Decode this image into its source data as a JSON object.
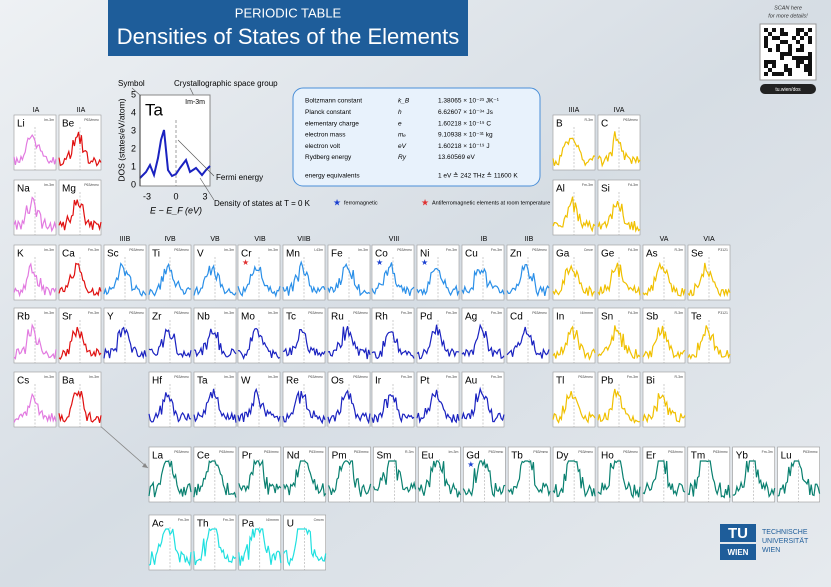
{
  "header": {
    "kicker": "PERIODIC TABLE",
    "title": "Densities of States of the Elements"
  },
  "qr": {
    "note_line1": "SCAN here",
    "note_line2": "for more details!",
    "caption": "tu.wien/dos"
  },
  "example": {
    "symbol": "Ta",
    "space_group": "Im-3m",
    "label_symbol": "Symbol",
    "label_space_group": "Crystallographic space group",
    "label_fermi": "Fermi energy",
    "label_dos": "Density of states at T = 0 K",
    "y_axis": "DOS (states/eV/atom)",
    "x_axis": "E − E_F (eV)",
    "yticks": [
      "5",
      "4",
      "3",
      "2",
      "1",
      "0"
    ],
    "xticks": [
      "-3",
      "0",
      "3"
    ]
  },
  "constants": {
    "rows": [
      [
        "Boltzmann constant",
        "k_B",
        "1.38065 × 10⁻²³ JK⁻¹"
      ],
      [
        "Planck constant",
        "h",
        "6.62607 × 10⁻³⁴ Js"
      ],
      [
        "elementary charge",
        "e",
        "1.60218 × 10⁻¹⁹ C"
      ],
      [
        "electron mass",
        "mₑ",
        "9.10938 × 10⁻³¹ kg"
      ],
      [
        "electron volt",
        "eV",
        "1.60218 × 10⁻¹⁹ J"
      ],
      [
        "Rydberg energy",
        "Ry",
        "13.60569 eV"
      ]
    ],
    "equiv_label": "energy equivalents",
    "equiv_value": "1 eV ≙ 242 THz ≙ 11600 K"
  },
  "legend": {
    "ferro": "ferromagnetic",
    "antiferro": "Antiferromagnetic elements at room temperature",
    "ferro_color": "#1a3fd0",
    "antiferro_color": "#e03030"
  },
  "groups": [
    "IA",
    "IIA",
    "IIIB",
    "IVB",
    "VB",
    "VIB",
    "VIIB",
    "VIII",
    "IB",
    "IIB",
    "IIIA",
    "IVA",
    "VA",
    "VIA"
  ],
  "logo": {
    "mark_top": "TU",
    "mark_bottom": "WIEN",
    "line1": "TECHNISCHE",
    "line2": "UNIVERSITÄT",
    "line3": "WIEN"
  },
  "elements": [
    {
      "symbol": "Li",
      "space_group": "Im-3m",
      "color": "#e27ae0"
    },
    {
      "symbol": "Be",
      "space_group": "P63/mmc",
      "color": "#e01010"
    },
    {
      "symbol": "B",
      "space_group": "R-3m",
      "color": "#f0c000"
    },
    {
      "symbol": "C",
      "space_group": "P63/mmc",
      "color": "#f0c000"
    },
    {
      "symbol": "Na",
      "space_group": "Im-3m",
      "color": "#e27ae0"
    },
    {
      "symbol": "Mg",
      "space_group": "P63/mmc",
      "color": "#e01010"
    },
    {
      "symbol": "Al",
      "space_group": "Fm-3m",
      "color": "#f0c000"
    },
    {
      "symbol": "Si",
      "space_group": "Fd-3m",
      "color": "#f0c000"
    },
    {
      "symbol": "K",
      "space_group": "Im-3m",
      "color": "#e27ae0"
    },
    {
      "symbol": "Ca",
      "space_group": "Fm-3m",
      "color": "#e01010"
    },
    {
      "symbol": "Sc",
      "space_group": "P63/mmc",
      "color": "#2a8fe8"
    },
    {
      "symbol": "Ti",
      "space_group": "P63/mmc",
      "color": "#2a8fe8"
    },
    {
      "symbol": "V",
      "space_group": "Im-3m",
      "color": "#2a8fe8"
    },
    {
      "symbol": "Cr",
      "space_group": "Im-3m",
      "color": "#2a8fe8",
      "star": "antiferro"
    },
    {
      "symbol": "Mn",
      "space_group": "I-43m",
      "color": "#2a8fe8"
    },
    {
      "symbol": "Fe",
      "space_group": "Im-3m",
      "color": "#2a8fe8"
    },
    {
      "symbol": "Co",
      "space_group": "P63/mmc",
      "color": "#2a8fe8",
      "star": "ferro"
    },
    {
      "symbol": "Ni",
      "space_group": "Fm-3m",
      "color": "#2a8fe8",
      "star": "ferro"
    },
    {
      "symbol": "Cu",
      "space_group": "Fm-3m",
      "color": "#2a8fe8"
    },
    {
      "symbol": "Zn",
      "space_group": "P63/mmc",
      "color": "#2a8fe8"
    },
    {
      "symbol": "Ga",
      "space_group": "Cmce",
      "color": "#f0c000"
    },
    {
      "symbol": "Ge",
      "space_group": "Fd-3m",
      "color": "#f0c000"
    },
    {
      "symbol": "As",
      "space_group": "R-3m",
      "color": "#f0c000"
    },
    {
      "symbol": "Se",
      "space_group": "P3121",
      "color": "#f0c000"
    },
    {
      "symbol": "Rb",
      "space_group": "Im-3m",
      "color": "#e27ae0"
    },
    {
      "symbol": "Sr",
      "space_group": "Fm-3m",
      "color": "#e01010"
    },
    {
      "symbol": "Y",
      "space_group": "P63/mmc",
      "color": "#1a22c0"
    },
    {
      "symbol": "Zr",
      "space_group": "P63/mmc",
      "color": "#1a22c0"
    },
    {
      "symbol": "Nb",
      "space_group": "Im-3m",
      "color": "#1a22c0"
    },
    {
      "symbol": "Mo",
      "space_group": "Im-3m",
      "color": "#1a22c0"
    },
    {
      "symbol": "Tc",
      "space_group": "P63/mmc",
      "color": "#1a22c0"
    },
    {
      "symbol": "Ru",
      "space_group": "P63/mmc",
      "color": "#1a22c0"
    },
    {
      "symbol": "Rh",
      "space_group": "Fm-3m",
      "color": "#1a22c0"
    },
    {
      "symbol": "Pd",
      "space_group": "Fm-3m",
      "color": "#1a22c0"
    },
    {
      "symbol": "Ag",
      "space_group": "Fm-3m",
      "color": "#1a22c0"
    },
    {
      "symbol": "Cd",
      "space_group": "P63/mmc",
      "color": "#1a22c0"
    },
    {
      "symbol": "In",
      "space_group": "I4/mmm",
      "color": "#f0c000"
    },
    {
      "symbol": "Sn",
      "space_group": "Fd-3m",
      "color": "#f0c000"
    },
    {
      "symbol": "Sb",
      "space_group": "R-3m",
      "color": "#f0c000"
    },
    {
      "symbol": "Te",
      "space_group": "P3121",
      "color": "#f0c000"
    },
    {
      "symbol": "Cs",
      "space_group": "Im-3m",
      "color": "#e27ae0"
    },
    {
      "symbol": "Ba",
      "space_group": "Im-3m",
      "color": "#e01010"
    },
    {
      "symbol": "Hf",
      "space_group": "P63/mmc",
      "color": "#1a22c0"
    },
    {
      "symbol": "Ta",
      "space_group": "Im-3m",
      "color": "#1a22c0"
    },
    {
      "symbol": "W",
      "space_group": "Im-3m",
      "color": "#1a22c0"
    },
    {
      "symbol": "Re",
      "space_group": "P63/mmc",
      "color": "#1a22c0"
    },
    {
      "symbol": "Os",
      "space_group": "P63/mmc",
      "color": "#1a22c0"
    },
    {
      "symbol": "Ir",
      "space_group": "Fm-3m",
      "color": "#1a22c0"
    },
    {
      "symbol": "Pt",
      "space_group": "Fm-3m",
      "color": "#1a22c0"
    },
    {
      "symbol": "Au",
      "space_group": "Fm-3m",
      "color": "#1a22c0"
    },
    {
      "symbol": "Tl",
      "space_group": "P63/mmc",
      "color": "#f0c000"
    },
    {
      "symbol": "Pb",
      "space_group": "Fm-3m",
      "color": "#f0c000"
    },
    {
      "symbol": "Bi",
      "space_group": "R-3m",
      "color": "#f0c000"
    },
    {
      "symbol": "La",
      "space_group": "P63/mmc",
      "color": "#0a8070"
    },
    {
      "symbol": "Ce",
      "space_group": "P63/mmc",
      "color": "#0a8070"
    },
    {
      "symbol": "Pr",
      "space_group": "P63/mmc",
      "color": "#0a8070"
    },
    {
      "symbol": "Nd",
      "space_group": "P63/mmc",
      "color": "#0a8070"
    },
    {
      "symbol": "Pm",
      "space_group": "P63/mmc",
      "color": "#0a8070"
    },
    {
      "symbol": "Sm",
      "space_group": "R-3m",
      "color": "#0a8070"
    },
    {
      "symbol": "Eu",
      "space_group": "Im-3m",
      "color": "#0a8070"
    },
    {
      "symbol": "Gd",
      "space_group": "P63/mmc",
      "color": "#0a8070",
      "star": "ferro"
    },
    {
      "symbol": "Tb",
      "space_group": "P63/mmc",
      "color": "#0a8070"
    },
    {
      "symbol": "Dy",
      "space_group": "P63/mmc",
      "color": "#0a8070"
    },
    {
      "symbol": "Ho",
      "space_group": "P63/mmc",
      "color": "#0a8070"
    },
    {
      "symbol": "Er",
      "space_group": "P63/mmc",
      "color": "#0a8070"
    },
    {
      "symbol": "Tm",
      "space_group": "P63/mmc",
      "color": "#0a8070"
    },
    {
      "symbol": "Yb",
      "space_group": "Fm-3m",
      "color": "#0a8070"
    },
    {
      "symbol": "Lu",
      "space_group": "P63/mmc",
      "color": "#0a8070"
    },
    {
      "symbol": "Ac",
      "space_group": "Fm-3m",
      "color": "#20e0e0"
    },
    {
      "symbol": "Th",
      "space_group": "Fm-3m",
      "color": "#20e0e0"
    },
    {
      "symbol": "Pa",
      "space_group": "I4/mmm",
      "color": "#20e0e0"
    },
    {
      "symbol": "U",
      "space_group": "Cmcm",
      "color": "#20e0e0"
    }
  ]
}
